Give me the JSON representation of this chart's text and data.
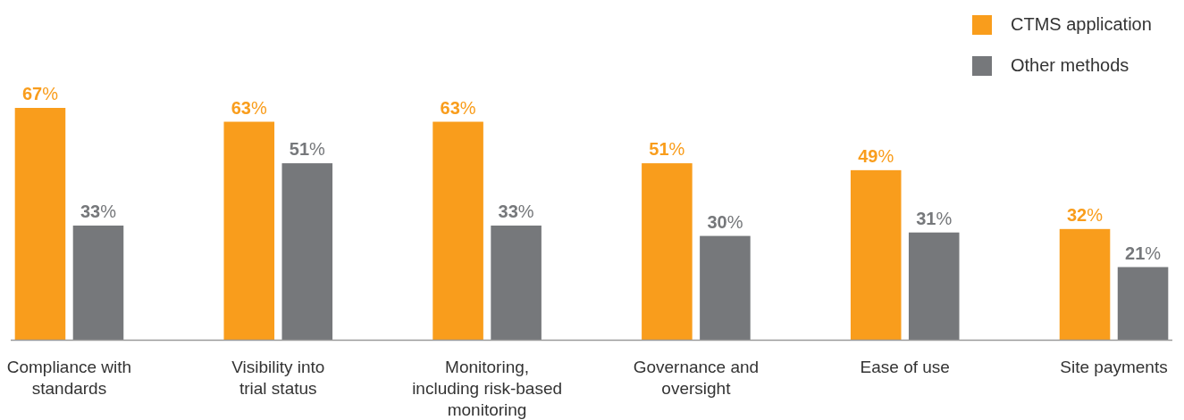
{
  "chart_data": {
    "type": "bar",
    "categories": [
      "Compliance with standards",
      "Visibility into trial status",
      "Monitoring, including risk-based monitoring",
      "Governance and oversight",
      "Ease of use",
      "Site payments"
    ],
    "series": [
      {
        "name": "CTMS application",
        "color": "#f99d1c",
        "values": [
          67,
          63,
          63,
          51,
          49,
          32
        ],
        "value_labels": [
          "67%",
          "63%",
          "63%",
          "51%",
          "49%",
          "32%"
        ]
      },
      {
        "name": "Other methods",
        "color": "#76787b",
        "values": [
          33,
          51,
          33,
          30,
          31,
          21
        ],
        "value_labels": [
          "33%",
          "51%",
          "33%",
          "30%",
          "31%",
          "21%"
        ]
      }
    ],
    "legend": "top right"
  }
}
